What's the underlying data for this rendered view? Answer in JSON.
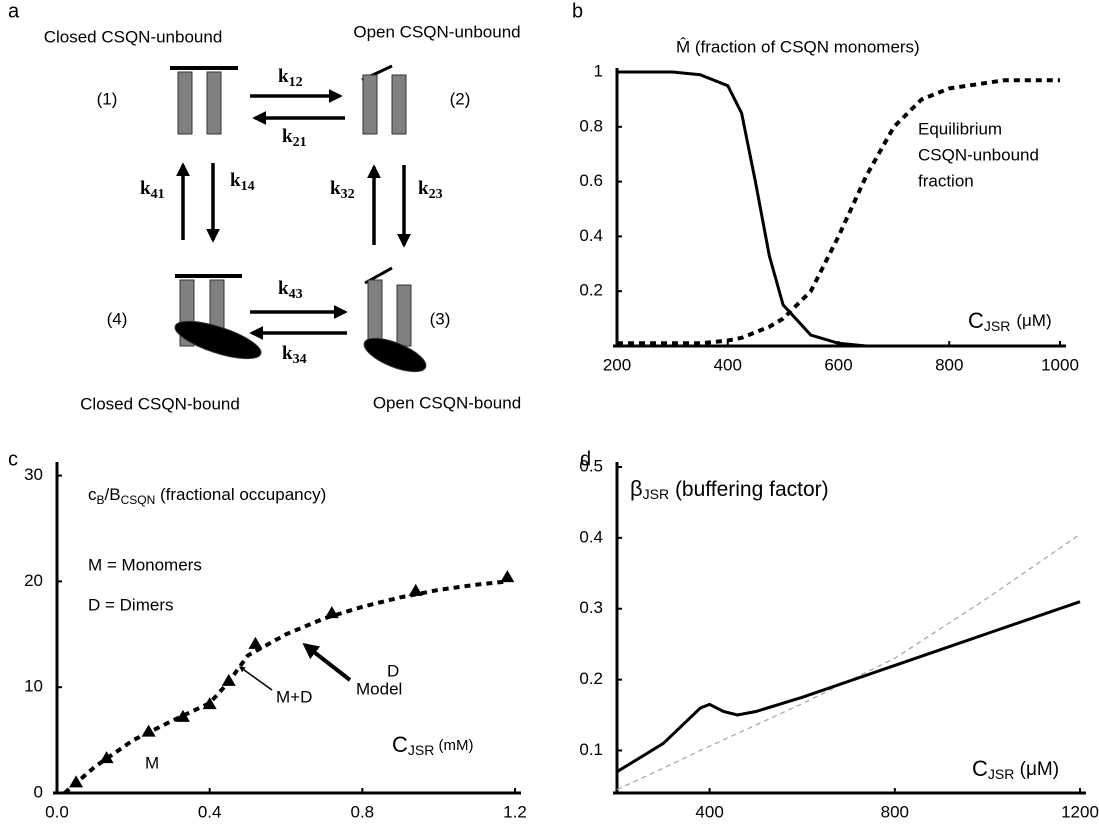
{
  "diagram": {
    "panel_label": "a",
    "states": [
      "Closed CSQN-unbound",
      "Open CSQN-unbound",
      "Open CSQN-bound",
      "Closed CSQN-bound"
    ],
    "numbers": [
      "(1)",
      "(2)",
      "(3)",
      "(4)"
    ],
    "rates": [
      {
        "k": "k",
        "sub": "12"
      },
      {
        "k": "k",
        "sub": "21"
      },
      {
        "k": "k",
        "sub": "41"
      },
      {
        "k": "k",
        "sub": "14"
      },
      {
        "k": "k",
        "sub": "32"
      },
      {
        "k": "k",
        "sub": "23"
      },
      {
        "k": "k",
        "sub": "43"
      },
      {
        "k": "k",
        "sub": "34"
      }
    ]
  },
  "chart_data": [
    {
      "type": "line",
      "panel_label": "b",
      "title": "M̂ (fraction of CSQN monomers)",
      "annotations": {
        "curve_label": [
          "Equilibrium",
          "CSQN-unbound",
          "fraction"
        ],
        "x_label": {
          "main": "C",
          "sub": "JSR",
          "unit": "(μM)"
        }
      },
      "xlim": [
        200,
        1000
      ],
      "ylim": [
        0,
        1
      ],
      "xticks": [
        200,
        400,
        600,
        800,
        1000
      ],
      "yticks": [
        0.2,
        0.4,
        0.6,
        0.8,
        1
      ],
      "series": [
        {
          "color": "#000000",
          "dash": "solid",
          "x": [
            200,
            250,
            300,
            350,
            400,
            425,
            450,
            475,
            500,
            550,
            600,
            650,
            700,
            750,
            800,
            900,
            1000
          ],
          "values": [
            1,
            1,
            1,
            0.99,
            0.95,
            0.85,
            0.6,
            0.33,
            0.15,
            0.04,
            0.01,
            0,
            0,
            0,
            0,
            0,
            0
          ]
        },
        {
          "color": "#000000",
          "dash": "dashed",
          "x": [
            200,
            250,
            300,
            350,
            400,
            425,
            450,
            475,
            500,
            550,
            600,
            650,
            700,
            750,
            800,
            900,
            1000
          ],
          "values": [
            0.01,
            0.01,
            0.01,
            0.01,
            0.02,
            0.03,
            0.05,
            0.07,
            0.1,
            0.2,
            0.4,
            0.62,
            0.8,
            0.9,
            0.94,
            0.97,
            0.97
          ]
        }
      ]
    },
    {
      "type": "line",
      "panel_label": "c",
      "annotations": {
        "y_label": {
          "c": "c",
          "c_sub": "B",
          "b": "/B",
          "b_sub": "CSQN",
          "rest": " (fractional occupancy)"
        },
        "legend_m": "M = Monomers",
        "legend_d": "D = Dimers",
        "m": "M",
        "d": "D",
        "md": "M+D",
        "model": "Model",
        "x_label": {
          "main": "C",
          "sub": "JSR",
          "unit": " (mM)"
        }
      },
      "xlim": [
        0,
        1.2
      ],
      "ylim": [
        0,
        31
      ],
      "xticks": [
        {
          "value": 0,
          "label": "0.0"
        },
        0.4,
        0.8,
        1.2
      ],
      "yticks": [
        0,
        10,
        20,
        30
      ],
      "series": [
        {
          "color": "#000000",
          "dash": "dashed",
          "x": [
            0.02,
            0.1,
            0.2,
            0.3,
            0.4,
            0.45,
            0.5,
            0.6,
            0.7,
            0.8,
            0.9,
            1.0,
            1.1,
            1.18
          ],
          "values": [
            0,
            2.5,
            5,
            6.8,
            8.5,
            10.5,
            13,
            15,
            16.5,
            17.6,
            18.5,
            19.2,
            19.7,
            20
          ]
        },
        {
          "color": "#000000",
          "marker": "triangle",
          "x": [
            0.05,
            0.13,
            0.24,
            0.33,
            0.4,
            0.45,
            0.52,
            0.72,
            0.94,
            1.18
          ],
          "values": [
            1,
            3.3,
            5.8,
            7.2,
            8.4,
            10.6,
            14.1,
            17,
            19.1,
            20.4
          ]
        }
      ]
    },
    {
      "type": "line",
      "panel_label": "d",
      "annotations": {
        "y_label": {
          "main": "β",
          "sub": "JSR",
          "rest": " (buffering factor)"
        },
        "x_label": {
          "main": "C",
          "sub": "JSR",
          "unit": " (μM)"
        }
      },
      "xlim": [
        200,
        1200
      ],
      "ylim": [
        0.04,
        0.5
      ],
      "xticks": [
        400,
        800,
        1200
      ],
      "yticks": [
        0.1,
        0.2,
        0.3,
        0.4,
        0.5
      ],
      "series": [
        {
          "color": "#aaaaaa",
          "dash": "dashed",
          "x": [
            200,
            300,
            380,
            400,
            430,
            460,
            500,
            600,
            800,
            1000,
            1200
          ],
          "values": [
            0.045,
            0.075,
            0.1,
            0.106,
            0.115,
            0.124,
            0.136,
            0.166,
            0.23,
            0.315,
            0.405
          ]
        },
        {
          "color": "#000000",
          "dash": "solid",
          "x": [
            200,
            300,
            380,
            400,
            430,
            460,
            500,
            600,
            800,
            1000,
            1200
          ],
          "values": [
            0.07,
            0.11,
            0.16,
            0.165,
            0.155,
            0.15,
            0.155,
            0.175,
            0.22,
            0.265,
            0.31
          ]
        }
      ]
    }
  ]
}
